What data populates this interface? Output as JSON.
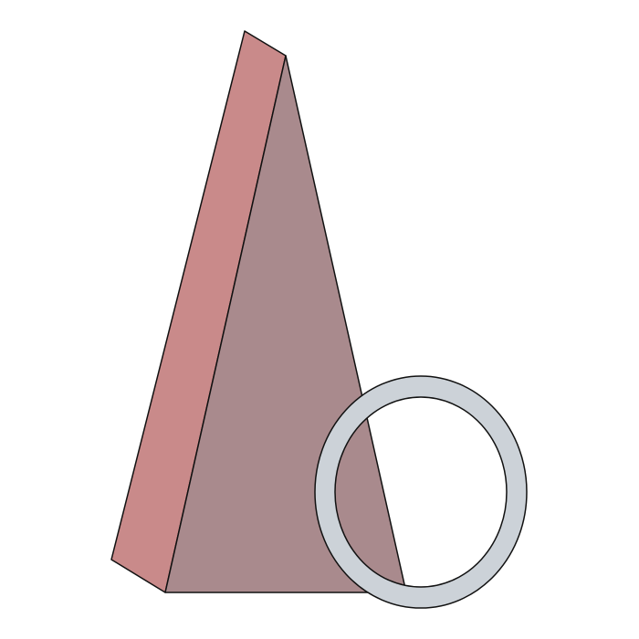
{
  "scene": {
    "background_color": "#ffffff",
    "outline_color": "#111111",
    "shapes": [
      {
        "name": "pyramid-side-face",
        "kind": "polygon",
        "fill": "#c98a8a"
      },
      {
        "name": "pyramid-front-face",
        "kind": "polygon",
        "fill": "#a98a8d"
      },
      {
        "name": "ring",
        "kind": "annulus",
        "fill": "#ccd2d8"
      }
    ]
  }
}
